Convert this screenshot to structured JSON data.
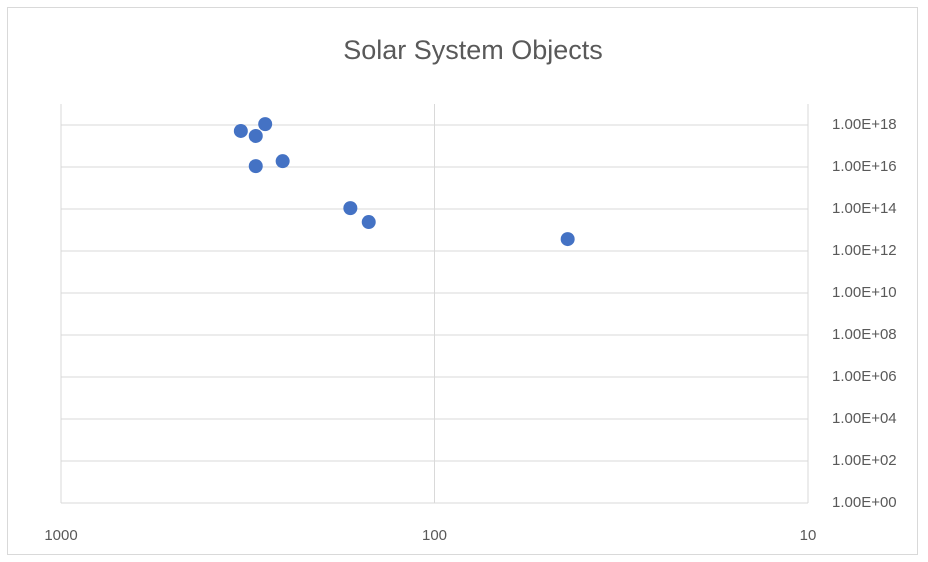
{
  "chart_data": {
    "type": "scatter",
    "title": "Solar System Objects",
    "x": [
      330,
      284,
      301,
      301,
      255,
      168,
      150,
      44
    ],
    "values": [
      5.2e+17,
      1.1e+18,
      3e+17,
      1.1e+16,
      1.9e+16,
      110000000000000.0,
      24000000000000.0,
      3700000000000.0
    ],
    "color": "#4472c4",
    "xlim": [
      1000,
      10
    ],
    "xticks": [
      1000,
      100,
      10
    ],
    "xlog": true,
    "x_reversed": true,
    "ylim": [
      1,
      1e+19
    ],
    "ylog": true,
    "y_axis_side": "right",
    "yticks": [
      {
        "value": 1,
        "label": "1.00E+00"
      },
      {
        "value": 100,
        "label": "1.00E+02"
      },
      {
        "value": 10000,
        "label": "1.00E+04"
      },
      {
        "value": 1000000,
        "label": "1.00E+06"
      },
      {
        "value": 100000000,
        "label": "1.00E+08"
      },
      {
        "value": 10000000000,
        "label": "1.00E+10"
      },
      {
        "value": 1000000000000,
        "label": "1.00E+12"
      },
      {
        "value": 100000000000000,
        "label": "1.00E+14"
      },
      {
        "value": 10000000000000000,
        "label": "1.00E+16"
      },
      {
        "value": 1000000000000000000,
        "label": "1.00E+18"
      }
    ],
    "grid": true
  }
}
